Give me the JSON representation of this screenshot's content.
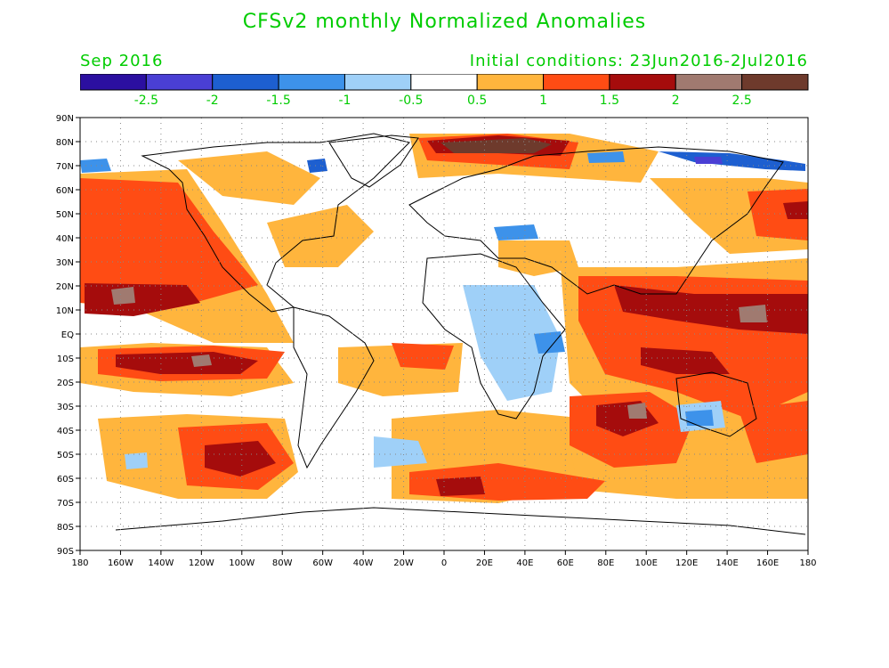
{
  "title": "CFSv2 monthly Normalized Anomalies",
  "month_label": "Sep 2016",
  "init_label": "Initial conditions: 23Jun2016-2Jul2016",
  "colorbar": {
    "bins": [
      {
        "color": "#2b0fa0"
      },
      {
        "color": "#4a3fd4"
      },
      {
        "color": "#1d5fd0"
      },
      {
        "color": "#3d92ea"
      },
      {
        "color": "#9fd0f8"
      },
      {
        "color": "#ffffff"
      },
      {
        "color": "#ffb53d"
      },
      {
        "color": "#ff4c14"
      },
      {
        "color": "#a50c0c"
      },
      {
        "color": "#a07a70"
      },
      {
        "color": "#6e3a2c"
      }
    ],
    "tick_labels": [
      "-2.5",
      "-2",
      "-1.5",
      "-1",
      "-0.5",
      "0.5",
      "1",
      "1.5",
      "2",
      "2.5"
    ]
  },
  "map": {
    "lat_labels": [
      "90N",
      "80N",
      "70N",
      "60N",
      "50N",
      "40N",
      "30N",
      "20N",
      "10N",
      "EQ",
      "10S",
      "20S",
      "30S",
      "40S",
      "50S",
      "60S",
      "70S",
      "80S",
      "90S"
    ],
    "lon_labels": [
      "180",
      "160W",
      "140W",
      "120W",
      "100W",
      "80W",
      "60W",
      "40W",
      "20W",
      "0",
      "20E",
      "40E",
      "60E",
      "80E",
      "100E",
      "120E",
      "140E",
      "160E",
      "180"
    ]
  },
  "colors": {
    "title": "#00cc00",
    "axis": "#000000"
  }
}
